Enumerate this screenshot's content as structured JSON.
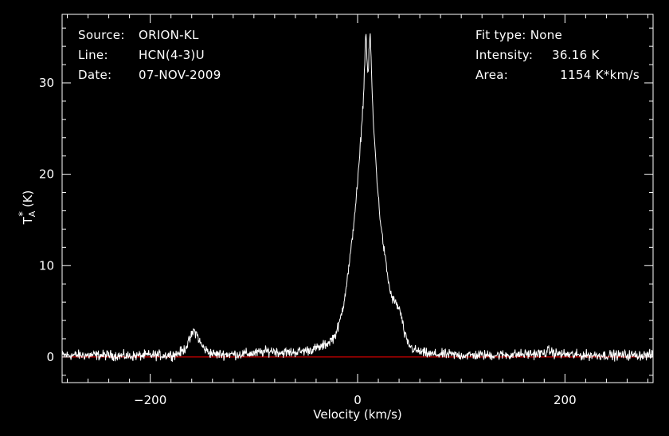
{
  "info_left": [
    {
      "label": "Source:",
      "value": "ORION-KL"
    },
    {
      "label": "Line:",
      "value": "HCN(4-3)U"
    },
    {
      "label": "Date:",
      "value": "07-NOV-2009"
    }
  ],
  "info_right": [
    {
      "label": "Fit type:",
      "value": "None"
    },
    {
      "label": "Intensity:",
      "value": "36.16 K"
    },
    {
      "label": "Area:",
      "value": "1154 K*km/s"
    }
  ],
  "colors": {
    "background": "#000000",
    "axes": "#ffffff",
    "spectrum": "#ffffff",
    "baseline": "#ff0000"
  },
  "chart_data": {
    "type": "line",
    "xlabel": "Velocity (km/s)",
    "ylabel_main": "T",
    "ylabel_super": "*",
    "ylabel_sub": "A",
    "ylabel_unit": "(K)",
    "xlim": [
      -285,
      285
    ],
    "ylim": [
      -2.8,
      37.5
    ],
    "xticks": [
      -200,
      0,
      200
    ],
    "xtick_labels": [
      "−200",
      "0",
      "200"
    ],
    "yticks": [
      0,
      10,
      20,
      30
    ],
    "ytick_labels": [
      "0",
      "10",
      "20",
      "30"
    ],
    "grid": false,
    "baseline_value": 0,
    "series": [
      {
        "x": [
          -285,
          -260,
          -240,
          -220,
          -200,
          -185,
          -175,
          -168,
          -163,
          -160,
          -158,
          -155,
          -152,
          -148,
          -143,
          -138,
          -130,
          -115,
          -100,
          -88,
          -82,
          -75,
          -65,
          -55,
          -45,
          -35,
          -28,
          -22,
          -18,
          -14,
          -10,
          -6,
          -3,
          0,
          2,
          4,
          6,
          7,
          8,
          9,
          10,
          11,
          12,
          13,
          14,
          15,
          17,
          19,
          21,
          24,
          27,
          30,
          33,
          36,
          39,
          41,
          43,
          45,
          48,
          52,
          56,
          62,
          70,
          80,
          100,
          130,
          160,
          180,
          185,
          190,
          210,
          240,
          285
        ],
        "y": [
          0.2,
          0.2,
          0.2,
          0.1,
          0.2,
          0.2,
          0.3,
          0.7,
          1.6,
          2.4,
          2.9,
          2.5,
          1.6,
          0.9,
          0.5,
          0.3,
          0.3,
          0.3,
          0.4,
          0.6,
          0.7,
          0.5,
          0.5,
          0.6,
          0.8,
          1.1,
          1.6,
          2.3,
          3.5,
          5.5,
          8.5,
          12,
          15.5,
          19,
          22,
          25.5,
          29,
          33,
          35.8,
          33,
          30.5,
          33,
          35.5,
          33,
          29,
          26,
          22.5,
          19,
          16,
          13,
          10.5,
          8,
          6.5,
          6,
          5.5,
          5,
          4,
          2.6,
          1.6,
          1,
          0.7,
          0.5,
          0.3,
          0.3,
          0.2,
          0.2,
          0.3,
          0.4,
          0.7,
          0.4,
          0.2,
          0.2,
          0.2
        ]
      }
    ]
  }
}
